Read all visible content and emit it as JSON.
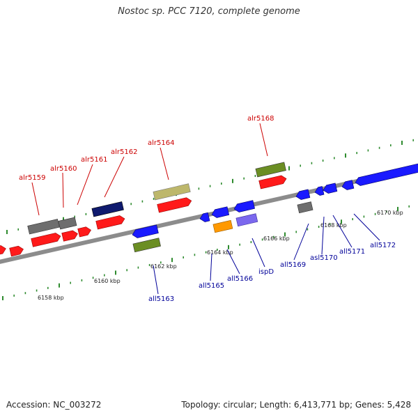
{
  "title": "Nostoc sp. PCC 7120, complete genome",
  "accession": "Accession: NC_003272",
  "topology": "Topology: circular; Length: 6,413,771 bp; Genes: 5,428",
  "colors": {
    "red": "#ff1a1a",
    "blue": "#1a1aff",
    "gray": "#6e6e6e",
    "navy": "#0f1a6e",
    "olive": "#6b8e23",
    "khaki": "#bdb76b",
    "orange": "#ff9900",
    "purple": "#7b68ee",
    "tick": "#2e8b2e",
    "backbone": "#8c8c8c",
    "label_fwd": "#cc0000",
    "label_rev": "#000099"
  },
  "scale_labels": [
    "6158 kbp",
    "6160 kbp",
    "6162 kbp",
    "6164 kbp",
    "6166 kbp",
    "6168 kbp",
    "6170 kbp"
  ],
  "gene_labels_forward": [
    "alr5159",
    "alr5160",
    "alr5161",
    "alr5162",
    "alr5164",
    "alr5168"
  ],
  "gene_labels_reverse": [
    "all5163",
    "all5165",
    "all5166",
    "ispD",
    "all5169",
    "asl5170",
    "all5171",
    "all5172"
  ]
}
